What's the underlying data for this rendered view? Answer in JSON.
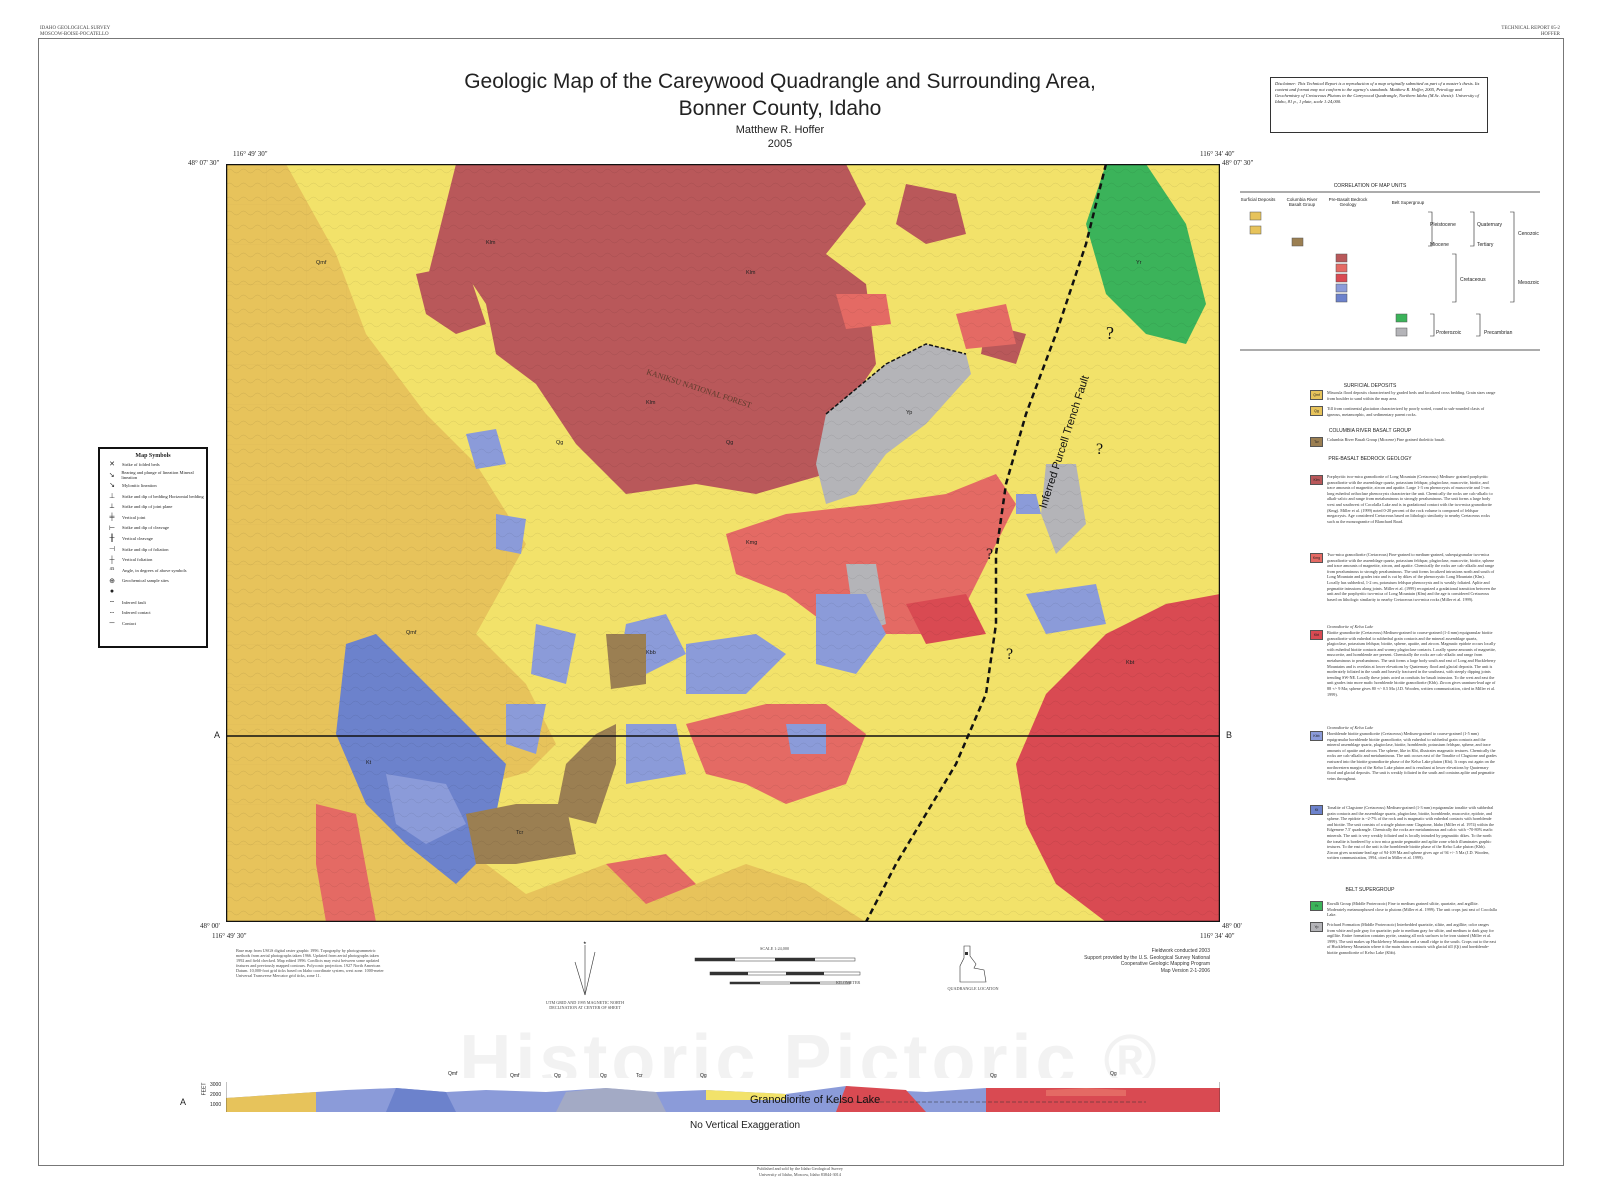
{
  "header": {
    "left_line1": "IDAHO GEOLOGICAL SURVEY",
    "left_line2": "MOSCOW-BOISE-POCATELLO",
    "right_line1": "TECHNICAL REPORT 05-2",
    "right_line2": "HOFFER"
  },
  "title": {
    "line1": "Geologic Map of the Careywood Quadrangle and Surrounding Area,",
    "line2": "Bonner County, Idaho",
    "author": "Matthew R. Hoffer",
    "year": "2005"
  },
  "coords": {
    "top_left_lon": "116° 49' 30\"",
    "top_left_lat": "48° 07' 30\"",
    "top_right_lon": "116° 34' 40\"",
    "top_right_lat": "48° 07' 30\"",
    "bottom_left_lat": "48° 00'",
    "bottom_left_lon": "116° 49' 30\"",
    "bottom_right_lat": "48° 00'",
    "bottom_right_lon": "116° 34' 40\""
  },
  "disclaimer": "Disclaimer: This Technical Report is a reproduction of a map originally submitted as part of a master's thesis. Its content and format may not conform to the agency's standards. Matthew R. Hoffer, 2005, Petrology and Geochemistry of Cretaceous Plutons in the Careywood Quadrangle, Northern Idaho (M.Sc. thesis): University of Idaho, 81 p., 1 plate, scale 1:24,000.",
  "map_symbols": {
    "title": "Map Symbols",
    "items": [
      "Strike of folded beds",
      "Bearing and plunge of lineation Mineral lineation",
      "Mylonitic lineation",
      "Strike and dip of bedding Horizontal bedding",
      "Strike and dip of joint plane",
      "Vertical joint",
      "Strike and dip of cleavage",
      "Vertical cleavage",
      "Strike and dip of foliation",
      "Vertical foliation",
      "Angle, in degrees of above symbols",
      "Geochemical sample sites",
      "",
      "Inferred fault",
      "Inferred contact",
      "Contact"
    ]
  },
  "map": {
    "fault_label": "Inferred Purcell Trench Fault",
    "section_a": "A",
    "section_b": "B",
    "question": "?",
    "unit_labels": [
      "Kbt",
      "Klm",
      "Kmg",
      "Qg",
      "Qmf",
      "Yp",
      "Kt",
      "Tcr",
      "Kbb",
      "Yr"
    ],
    "forest_text": "KANIKSU NATIONAL FOREST"
  },
  "correlation": {
    "title": "CORRELATION OF MAP UNITS",
    "columns": [
      "Surficial Deposits",
      "Columbia River Basalt Group",
      "Pre-Basalt Bedrock Geology",
      "Belt Supergroup"
    ],
    "labels": {
      "pleistocene": "Pleistocene",
      "miocene": "Miocene",
      "quaternary": "Quaternary",
      "tertiary": "Tertiary",
      "cenozoic": "Cenozoic",
      "cretaceous": "Cretaceous",
      "mesozoic": "Mesozoic",
      "proterozoic": "Proterozoic",
      "precambrian": "Precambrian"
    },
    "swatches": [
      "Qmf",
      "Qg",
      "Tcr",
      "Klm",
      "Kmg",
      "Kbt",
      "Kbb",
      "Kt",
      "Yr",
      "Yp"
    ]
  },
  "descriptions": {
    "surficial_head": "SURFICIAL DEPOSITS",
    "qmf": "Missoula flood deposits characterized by graded beds and localized cross bedding. Grain sizes range from boulder to sand within the map area.",
    "qg": "Till from continental glaciation characterized by poorly sorted, round to sub-rounded clasts of igneous, metamorphic, and sedimentary parent rocks.",
    "crbg_head": "COLUMBIA RIVER BASALT GROUP",
    "tcr": "Columbia River Basalt Group (Miocene) Fine grained tholeiitic basalt.",
    "prebasalt_head": "PRE-BASALT BEDROCK GEOLOGY",
    "klm": "Porphyritic two-mica granodiorite of Long Mountain (Cretaceous) Medium- grained porphyritic granodiorite with the assemblage quartz, potassium feldspar, plagioclase, muscovite, biotite, and trace amounts of magnetite, zircon and apatite. Large 1-3 cm phenocrysts of muscovite and 1-cm long euhedral orthoclase phenocrysts characterize the unit. Chemically the rocks are calc-alkalic to alkali-calcic and range from metaluminous to strongly peraluminous. The unit forms a large body west and southwest of Cocolalla Lake and is in gradational contact with the two-mica granodiorite (Kmg). Miller et al. (1999) noted 0-20 percent of the rock volume is composed of feldspar megacrysts. Age considered Cretaceous based on lithologic similarity to nearby Cretaceous rocks such as the monzogranite of Blanchard Road.",
    "kmg": "Two-mica granodiorite (Cretaceous) Fine-grained to medium-grained, subequigranular two-mica granodiorite with the assemblage quartz, potassium feldspar, plagioclase, muscovite, biotite, sphene and trace amounts of magnetite, zircon, and apatite. Chemically the rocks are calc-alkalic and range from peraluminous to strongly peraluminous. The unit forms localized intrusions north and south of Long Mountain and grades into and is cut by dikes of the phenocrystic Long Mountain (Klm). Locally has subhedral, 1-2 cm, potassium feldspar phenocrysts and is weakly foliated. Aplite and pegmatite intrusions along joints. Miller et al. (1999) recognized a gradational transition between the unit and the porphyritic two-mica of Long Mountain (Klm) and the age is considered Cretaceous based on lithologic similarity to nearby Cretaceous two-mica rocks (Miller et al. 1999).",
    "kbt_sub": "Granodiorite of Kelso Lake",
    "kbt": "Biotite granodiorite (Cretaceous) Medium-grained to coarse-grained (1-4 mm) equigranular biotite granodiorite with euhedral to subhedral grain contacts and the mineral assemblage quartz, plagioclase, potassium feldspar, biotite, sphene, apatite, and zircon. Magmatic epidote occurs locally with euhedral biotite contacts and wormy plagioclase contacts. Locally sparse amounts of magnetite, muscovite, and hornblende are present. Chemically the rocks are calc-alkalic and range from metaluminous to peraluminous. The unit forms a large body south and east of Long and Huckleberry Mountains and is overlain at lower elevations by Quaternary flood and glacial deposits. The unit is moderately foliated in the south and heavily fractured in the southeast, with steeply dipping joints trending SW-NE. Locally these joints acted as conduits for basalt intrusion. To the west and east the unit grades into more mafic hornblende biotite granodiorite (Kbb). Zircon gives uranium-lead age of 88 +/- 9 Ma; sphene gives 80 +/- 0.5 Ma (J.D. Wooden, written communication, cited in Miller et al. 1999).",
    "kbb_sub": "Granodiorite of Kelso Lake",
    "kbb": "Hornblende biotite granodiorite (Cretaceous) Medium-grained to coarse-grained (1-5 mm) equigranular hornblende biotite granodiorite, with euhedral to subhedral grain contacts and the mineral assemblage quartz, plagioclase, biotite, hornblende, potassium feldspar, sphene, and trace amounts of apatite and zircon. The sphene, like in Kbt, illustrates magmatic textures. Chemically the rocks are calc-alkalic and metaluminous. The unit occurs east of the Tonalite of Clagstone and grades eastward into the biotite granodiorite phase of the Kelso Lake pluton (Kbt). It crops out again on the northwestern margin of the Kelso Lake pluton and is resultant at lower elevations by Quaternary flood and glacial deposits. The unit is weakly foliated in the south and contains aplite and pegmatite veins throughout.",
    "kt": "Tonalite of Clagstone (Cretaceous) Medium-grained (1-3 mm) equigranular tonalite with subhedral grain contacts and the assemblage quartz, plagioclase, biotite, hornblende, muscovite, epidote, and sphene. The epidote is ~2-7% of the rock and is magmatic with euhedral contacts with hornblende and biotite. The unit consists of a single pluton near Clagstone, Idaho (Miller et al. 1974) within the Edgemere 7.5' quadrangle. Chemically the rocks are metaluminous and calcic with ~70-80% mafic minerals. The unit is very weakly foliated and is locally intruded by pegmatitic dikes. To the north the tonalite is bordered by a two mica granite pegmatite and aplite zone which illuminates graphic textures. To the east of the unit is the hornblende biotite phase of the Kelso Lake pluton (Kbb). Zircon gives uranium-lead age of 94-109 Ma and sphene gives age of 94 +/- 5 Ma (J.D. Wooden, written communication, 1994, cited in Miller et al. 1999).",
    "belt_head": "BELT SUPERGROUP",
    "yr": "Ravalli Group (Middle Proterozoic) Fine to medium grained siltite, quartzite, and argillite. Moderately metamorphosed close to plutons (Miller et al. 1999). The unit crops just east of Cocolalla Lake.",
    "yp": "Prichard Formation (Middle Proterozoic) Interbedded quartzite, siltite, and argillite; color ranges from white and pale gray for quartzite; pale to medium gray for siltite, and medium to dark gray for argillite. Entire formation contains pyrite, causing all rock surfaces to be iron stained (Miller et al. 1999). The unit makes up Huckleberry Mountain and a small ridge to the south. Crops out to the east of Huckleberry Mountain where it the main shows contacts with glacial till (Qt) and hornblende-biotite granodiorite of Kelso Lake (Kbb)."
  },
  "bottom": {
    "base_info": "Base map from USGS digital raster graphic 1996. Topography by photogrammetric methods from aerial photographs taken 1966. Updated from aerial photographs taken 1992 and field checked. Map edited 1996. Conflicts may exist between some updated features and previously mapped contours. Polyconic projection. 1927 North American Datum. 10,000-foot grid ticks based on Idaho coordinate system, west zone. 1000-meter Universal Transverse Mercator grid ticks, zone 11.",
    "declination": "UTM GRID AND 1995 MAGNETIC NORTH DECLINATION AT CENTER OF SHEET",
    "scale": "SCALE 1:24,000",
    "kilometer": "KILOMETER",
    "quad_location": "QUADRANGLE LOCATION",
    "fieldwork": "Fieldwork conducted 2003",
    "support1": "Support provided by the U.S. Geological Survey National",
    "support2": "Cooperative Geologic Mapping Program",
    "version": "Map Version 2-1-2006",
    "cross_a": "A",
    "cross_b": "B",
    "feet": "FEET",
    "elev": [
      "3000",
      "2000",
      "1000"
    ],
    "kelso": "Granodiorite of Kelso Lake",
    "no_vert": "No Vertical Exaggeration",
    "watermark": "Historic Pictoric ®",
    "published1": "Published and sold by the Idaho Geological Survey",
    "published2": "University of Idaho, Moscow, Idaho 83844-3014",
    "xs_labels": [
      "Qmf",
      "Qmf",
      "Qg",
      "Qg",
      "Tcr",
      "Qg",
      "Qg",
      "Qg"
    ]
  },
  "colors": {
    "qmf": "#e7c35b",
    "qg": "#f2e26a",
    "klm": "#b9585a",
    "kmg": "#e46a64",
    "kbt": "#d94a52",
    "kbb": "#8b9bd9",
    "kt": "#6c82cc",
    "tcr": "#9b7f52",
    "yr": "#3bb35a",
    "yp": "#b4b4b8"
  }
}
